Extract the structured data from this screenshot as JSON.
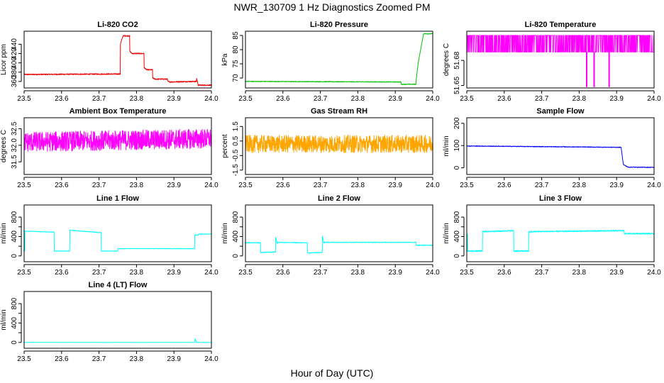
{
  "figure": {
    "title": "NWR_130709  1 Hz Diagnostics Zoomed PM",
    "xlabel": "Hour of Day (UTC)"
  },
  "chart_data": [
    {
      "type": "line",
      "title": "Li-820 CO2",
      "ylabel": "Licor ppm",
      "color": "#ee0000",
      "xlim": [
        23.5,
        24.0
      ],
      "ylim": [
        346,
        468
      ],
      "xticks": [
        23.5,
        23.6,
        23.7,
        23.8,
        23.9,
        24.0
      ],
      "xtick_labels": [
        "23.5",
        "23.6",
        "23.7",
        "23.8",
        "23.9",
        "24.0"
      ],
      "yticks": [
        360,
        380,
        400,
        420,
        440
      ],
      "ytick_labels": [
        "360",
        "380",
        "400",
        "420",
        "440"
      ],
      "noise": 1.2,
      "series": [
        {
          "x": [
            23.5,
            23.757,
            23.757,
            23.764,
            23.764,
            23.782,
            23.782,
            23.788,
            23.788,
            23.82,
            23.82,
            23.827,
            23.827,
            23.843,
            23.843,
            23.849,
            23.849,
            23.883,
            23.883,
            23.89,
            23.89,
            23.96,
            23.96,
            23.965,
            23.965,
            24.0
          ],
          "y": [
            375,
            376,
            440,
            458,
            458,
            458,
            425,
            420,
            420,
            420,
            390,
            385,
            385,
            385,
            368,
            365,
            365,
            365,
            360,
            359,
            359,
            360,
            368,
            352,
            352,
            352
          ]
        }
      ]
    },
    {
      "type": "line",
      "title": "Li-820 Pressure",
      "ylabel": "kPa",
      "color": "#00c000",
      "xlim": [
        23.5,
        24.0
      ],
      "ylim": [
        66.5,
        86.5
      ],
      "xticks": [
        23.5,
        23.6,
        23.7,
        23.8,
        23.9,
        24.0
      ],
      "xtick_labels": [
        "23.5",
        "23.6",
        "23.7",
        "23.8",
        "23.9",
        "24.0"
      ],
      "yticks": [
        70,
        75,
        80,
        85
      ],
      "ytick_labels": [
        "70",
        "75",
        "80",
        "85"
      ],
      "noise": 0.12,
      "series": [
        {
          "x": [
            23.5,
            23.915,
            23.915,
            23.955,
            23.955,
            23.962,
            23.975,
            23.975,
            24.0
          ],
          "y": [
            68.8,
            68.6,
            67.8,
            67.8,
            68.5,
            76,
            85.2,
            85.6,
            85.6
          ]
        }
      ]
    },
    {
      "type": "line",
      "title": "Li-820 Temperature",
      "ylabel": "degrees C",
      "color": "#ff00ff",
      "xlim": [
        23.5,
        24.0
      ],
      "ylim": [
        51.647,
        51.715
      ],
      "xticks": [
        23.5,
        23.6,
        23.7,
        23.8,
        23.9,
        24.0
      ],
      "xtick_labels": [
        "23.5",
        "23.6",
        "23.7",
        "23.8",
        "23.9",
        "24.0"
      ],
      "yticks": [
        51.65,
        51.68
      ],
      "ytick_labels": [
        "51.65",
        "51.68"
      ],
      "dropouts": [
        23.82,
        23.84,
        23.88
      ],
      "series": [
        {
          "x": [
            23.5,
            24.0
          ],
          "y": [
            51.69,
            51.71
          ]
        }
      ]
    },
    {
      "type": "line",
      "title": "Ambient Box Temperature",
      "ylabel": "degrees C",
      "color": "#ff00ff",
      "xlim": [
        23.5,
        24.0
      ],
      "ylim": [
        31.12,
        32.83
      ],
      "xticks": [
        23.5,
        23.6,
        23.7,
        23.8,
        23.9,
        24.0
      ],
      "xtick_labels": [
        "23.5",
        "23.6",
        "23.7",
        "23.8",
        "23.9",
        "24.0"
      ],
      "yticks": [
        31.5,
        32.0,
        32.5
      ],
      "ytick_labels": [
        "31.5",
        "32.0",
        "32.5"
      ],
      "noise": 0.3,
      "series": [
        {
          "x": [
            23.5,
            24.0
          ],
          "y": [
            32.1,
            32.2
          ]
        }
      ]
    },
    {
      "type": "line",
      "title": "Gas Stream RH",
      "ylabel": "percent",
      "color": "#ffa500",
      "xlim": [
        23.5,
        24.0
      ],
      "ylim": [
        -1.8,
        2.1
      ],
      "xticks": [
        23.5,
        23.6,
        23.7,
        23.8,
        23.9,
        24.0
      ],
      "xtick_labels": [
        "23.5",
        "23.6",
        "23.7",
        "23.8",
        "23.9",
        "24.0"
      ],
      "yticks": [
        -1.5,
        -0.5,
        0.5,
        1.5
      ],
      "ytick_labels": [
        "-1.5",
        "-0.5",
        "0.5",
        "1.5"
      ],
      "noise": 0.6,
      "series": [
        {
          "x": [
            23.5,
            24.0
          ],
          "y": [
            0.3,
            0.3
          ]
        }
      ]
    },
    {
      "type": "line",
      "title": "Sample Flow",
      "ylabel": "ml/min",
      "color": "#0000ff",
      "xlim": [
        23.5,
        24.0
      ],
      "ylim": [
        -30,
        225
      ],
      "xticks": [
        23.5,
        23.6,
        23.7,
        23.8,
        23.9,
        24.0
      ],
      "xtick_labels": [
        "23.5",
        "23.6",
        "23.7",
        "23.8",
        "23.9",
        "24.0"
      ],
      "yticks": [
        0,
        100,
        200
      ],
      "ytick_labels": [
        "0",
        "100",
        "200"
      ],
      "noise": 1.5,
      "series": [
        {
          "x": [
            23.5,
            23.912,
            23.912,
            23.918,
            23.93,
            24.0
          ],
          "y": [
            98,
            92,
            92,
            15,
            3,
            2
          ]
        }
      ]
    },
    {
      "type": "line",
      "title": "Line 1 Flow",
      "ylabel": "ml/min",
      "color": "#00ffff",
      "xlim": [
        23.5,
        24.0
      ],
      "ylim": [
        -120,
        1050
      ],
      "xticks": [
        23.5,
        23.6,
        23.7,
        23.8,
        23.9,
        24.0
      ],
      "xtick_labels": [
        "23.5",
        "23.6",
        "23.7",
        "23.8",
        "23.9",
        "24.0"
      ],
      "yticks": [
        0,
        200,
        400,
        600,
        800
      ],
      "ytick_labels": [
        "0",
        "400",
        "800"
      ],
      "noise": 5,
      "series": [
        {
          "x": [
            23.5,
            23.502,
            23.502,
            23.58,
            23.58,
            23.622,
            23.622,
            23.706,
            23.706,
            23.75,
            23.75,
            23.955,
            23.955,
            23.965,
            23.965,
            24.0
          ],
          "y": [
            100,
            100,
            510,
            490,
            100,
            100,
            530,
            480,
            100,
            100,
            150,
            150,
            430,
            430,
            450,
            450
          ]
        }
      ]
    },
    {
      "type": "line",
      "title": "Line 2 Flow",
      "ylabel": "ml/min",
      "color": "#00ffff",
      "xlim": [
        23.5,
        24.0
      ],
      "ylim": [
        -120,
        1050
      ],
      "xticks": [
        23.5,
        23.6,
        23.7,
        23.8,
        23.9,
        24.0
      ],
      "xtick_labels": [
        "23.5",
        "23.6",
        "23.7",
        "23.8",
        "23.9",
        "24.0"
      ],
      "yticks": [
        0,
        200,
        400,
        600,
        800
      ],
      "ytick_labels": [
        "0",
        "400",
        "800"
      ],
      "noise": 7,
      "series": [
        {
          "x": [
            23.5,
            23.54,
            23.54,
            23.58,
            23.58,
            23.585,
            23.585,
            23.665,
            23.665,
            23.705,
            23.705,
            23.71,
            23.71,
            23.955,
            23.955,
            24.0
          ],
          "y": [
            270,
            270,
            70,
            80,
            400,
            260,
            280,
            270,
            60,
            70,
            420,
            260,
            280,
            280,
            220,
            220
          ]
        }
      ]
    },
    {
      "type": "line",
      "title": "Line 3 Flow",
      "ylabel": "ml/min",
      "color": "#00ffff",
      "xlim": [
        23.5,
        24.0
      ],
      "ylim": [
        -120,
        1050
      ],
      "xticks": [
        23.5,
        23.6,
        23.7,
        23.8,
        23.9,
        24.0
      ],
      "xtick_labels": [
        "23.5",
        "23.6",
        "23.7",
        "23.8",
        "23.9",
        "24.0"
      ],
      "yticks": [
        0,
        200,
        400,
        600,
        800
      ],
      "ytick_labels": [
        "0",
        "400",
        "800"
      ],
      "noise": 12,
      "series": [
        {
          "x": [
            23.5,
            23.502,
            23.502,
            23.542,
            23.542,
            23.625,
            23.625,
            23.665,
            23.665,
            23.67,
            23.67,
            23.92,
            23.92,
            24.0
          ],
          "y": [
            100,
            520,
            100,
            100,
            500,
            520,
            100,
            100,
            500,
            480,
            500,
            520,
            460,
            460
          ]
        }
      ]
    },
    {
      "type": "line",
      "title": "Line 4 (LT) Flow",
      "ylabel": "ml/min",
      "color": "#00ffff",
      "xlim": [
        23.5,
        24.0
      ],
      "ylim": [
        -120,
        1050
      ],
      "xticks": [
        23.5,
        23.6,
        23.7,
        23.8,
        23.9,
        24.0
      ],
      "xtick_labels": [
        "23.5",
        "23.6",
        "23.7",
        "23.8",
        "23.9",
        "24.0"
      ],
      "yticks": [
        0,
        200,
        400,
        600,
        800
      ],
      "ytick_labels": [
        "0",
        "400",
        "800"
      ],
      "noise": 1,
      "series": [
        {
          "x": [
            23.5,
            23.955,
            23.957,
            23.96,
            23.962,
            24.0
          ],
          "y": [
            0,
            0,
            80,
            0,
            0,
            0
          ]
        }
      ]
    }
  ]
}
